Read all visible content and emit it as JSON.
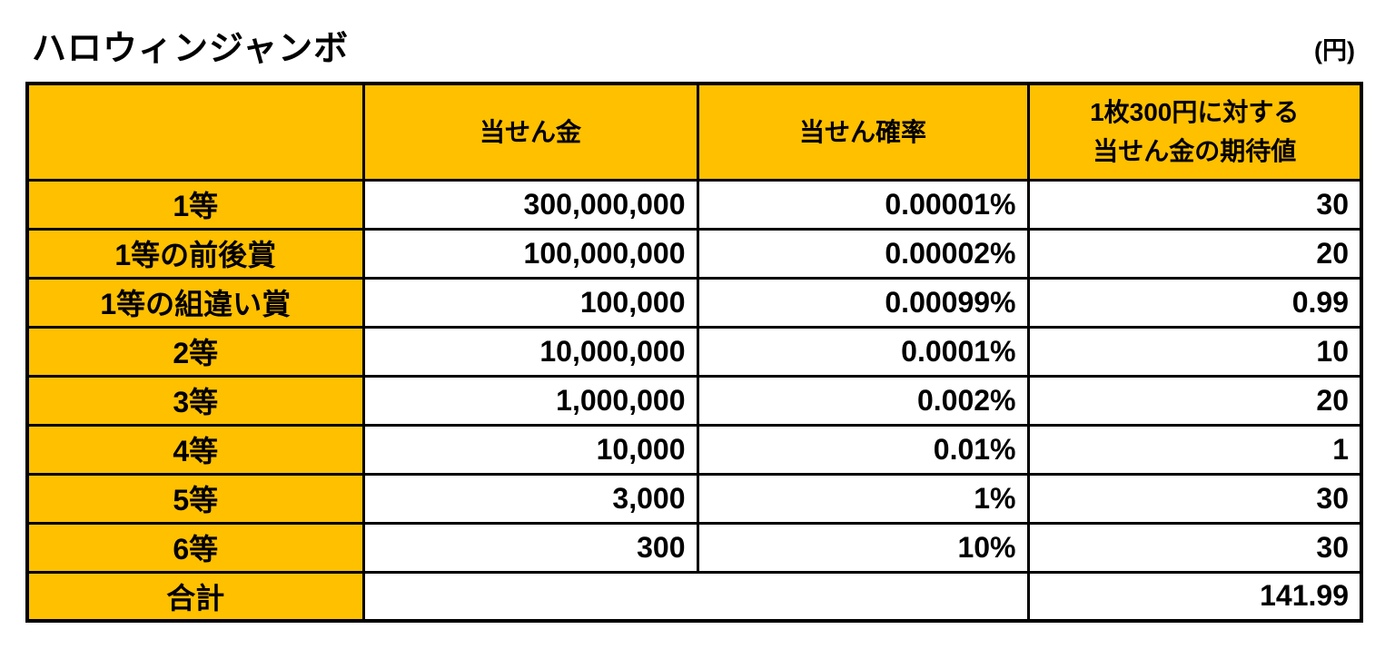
{
  "title": "ハロウィンジャンボ",
  "unit_label": "(円)",
  "colors": {
    "accent_bg": "#FFC000",
    "border": "#000000",
    "cell_bg": "#FFFFFF",
    "text": "#000000"
  },
  "table": {
    "header": {
      "label": "",
      "amount": "当せん金",
      "probability": "当せん確率",
      "expected_line1": "1枚300円に対する",
      "expected_line2": "当せん金の期待値"
    },
    "rows": [
      {
        "label": "1等",
        "amount": "300,000,000",
        "probability": "0.00001%",
        "expected": "30"
      },
      {
        "label": "1等の前後賞",
        "amount": "100,000,000",
        "probability": "0.00002%",
        "expected": "20"
      },
      {
        "label": "1等の組違い賞",
        "amount": "100,000",
        "probability": "0.00099%",
        "expected": "0.99"
      },
      {
        "label": "2等",
        "amount": "10,000,000",
        "probability": "0.0001%",
        "expected": "10"
      },
      {
        "label": "3等",
        "amount": "1,000,000",
        "probability": "0.002%",
        "expected": "20"
      },
      {
        "label": "4等",
        "amount": "10,000",
        "probability": "0.01%",
        "expected": "1"
      },
      {
        "label": "5等",
        "amount": "3,000",
        "probability": "1%",
        "expected": "30"
      },
      {
        "label": "6等",
        "amount": "300",
        "probability": "10%",
        "expected": "30"
      }
    ],
    "total": {
      "label": "合計",
      "expected": "141.99"
    }
  },
  "chart_data": {
    "type": "table",
    "title": "ハロウィンジャンボ",
    "unit": "円",
    "columns": [
      "",
      "当せん金",
      "当せん確率",
      "1枚300円に対する当せん金の期待値"
    ],
    "rows": [
      [
        "1等",
        "300,000,000",
        "0.00001%",
        "30"
      ],
      [
        "1等の前後賞",
        "100,000,000",
        "0.00002%",
        "20"
      ],
      [
        "1等の組違い賞",
        "100,000",
        "0.00099%",
        "0.99"
      ],
      [
        "2等",
        "10,000,000",
        "0.0001%",
        "10"
      ],
      [
        "3等",
        "1,000,000",
        "0.002%",
        "20"
      ],
      [
        "4等",
        "10,000",
        "0.01%",
        "1"
      ],
      [
        "5等",
        "3,000",
        "1%",
        "30"
      ],
      [
        "6等",
        "300",
        "10%",
        "30"
      ],
      [
        "合計",
        "",
        "",
        "141.99"
      ]
    ]
  }
}
